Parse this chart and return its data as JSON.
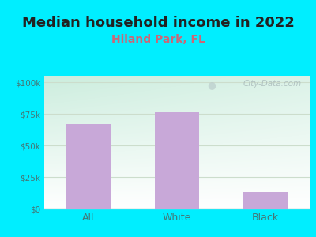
{
  "title": "Median household income in 2022",
  "subtitle": "Hiland Park, FL",
  "categories": [
    "All",
    "White",
    "Black"
  ],
  "values": [
    67000,
    76000,
    13000
  ],
  "bar_color": "#c8a8d8",
  "title_fontsize": 13,
  "subtitle_fontsize": 10,
  "title_color": "#222222",
  "subtitle_color": "#cc6677",
  "tick_color": "#447777",
  "background_outer": "#00eeff",
  "background_inner_top_left": "#cceedd",
  "background_inner_bottom_right": "#ffffff",
  "ytick_labels": [
    "$0",
    "$25k",
    "$50k",
    "$75k",
    "$100k"
  ],
  "ytick_values": [
    0,
    25000,
    50000,
    75000,
    100000
  ],
  "ylim": [
    0,
    105000
  ],
  "watermark": "City-Data.com",
  "grid_color": "#ccddcc",
  "spine_color": "#aacccc",
  "bar_width": 0.5
}
